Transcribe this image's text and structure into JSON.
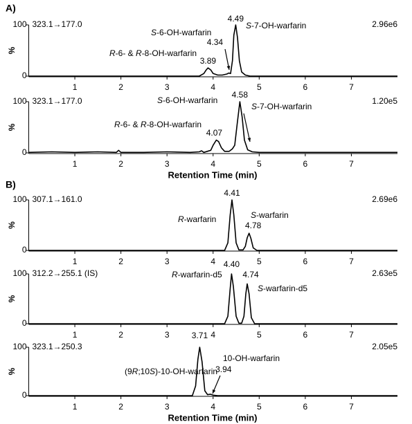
{
  "panel_labels": [
    "A)",
    "B)"
  ],
  "chart_data": [
    {
      "type": "line",
      "transition": "323.1→177.0",
      "intensity": "2.96e6",
      "ylabel": "%",
      "xlim": [
        0,
        8
      ],
      "xticks": [
        1,
        2,
        3,
        4,
        5,
        6,
        7
      ],
      "ylim": [
        0,
        100
      ],
      "yticks": [
        0,
        100
      ],
      "x": [
        0,
        3.7,
        3.8,
        3.85,
        3.89,
        3.95,
        4.0,
        4.1,
        4.2,
        4.3,
        4.34,
        4.38,
        4.42,
        4.45,
        4.49,
        4.53,
        4.57,
        4.62,
        4.7,
        4.8,
        8
      ],
      "values": [
        0,
        0,
        5,
        12,
        16,
        12,
        5,
        2,
        2,
        4,
        6,
        5,
        30,
        80,
        100,
        75,
        30,
        8,
        2,
        0,
        0
      ],
      "peaks": [
        4.49,
        4.34,
        3.89
      ],
      "annotations": [
        {
          "parts": [
            {
              "text": "S",
              "italic": true
            },
            {
              "text": "-6-OH-warfarin"
            }
          ]
        },
        {
          "parts": [
            {
              "text": "S",
              "italic": true
            },
            {
              "text": "-7-OH-warfarin"
            }
          ]
        },
        {
          "parts": [
            {
              "text": "R",
              "italic": true
            },
            {
              "text": "-6- & "
            },
            {
              "text": "R",
              "italic": true
            },
            {
              "text": "-8-OH-warfarin"
            }
          ]
        }
      ]
    },
    {
      "type": "line",
      "transition": "323.1→177.0",
      "intensity": "1.20e5",
      "ylabel": "%",
      "xlabel": "Retention Time (min)",
      "xlim": [
        0,
        8
      ],
      "xticks": [
        1,
        2,
        3,
        4,
        5,
        6,
        7
      ],
      "ylim": [
        0,
        100
      ],
      "yticks": [
        0,
        100
      ],
      "x": [
        0,
        0.5,
        1.0,
        1.5,
        1.9,
        1.95,
        2.0,
        2.5,
        3.0,
        3.5,
        3.7,
        3.75,
        3.8,
        3.95,
        4.0,
        4.07,
        4.12,
        4.18,
        4.25,
        4.35,
        4.42,
        4.47,
        4.52,
        4.58,
        4.63,
        4.68,
        4.75,
        4.85,
        5.0,
        6,
        7,
        8
      ],
      "values": [
        1,
        2,
        1,
        2,
        1,
        5,
        1,
        1,
        2,
        1,
        2,
        4,
        1,
        5,
        15,
        25,
        22,
        10,
        3,
        3,
        8,
        15,
        55,
        100,
        70,
        25,
        6,
        2,
        1,
        1,
        1,
        1
      ],
      "peaks": [
        4.58,
        4.07
      ],
      "annotations": [
        {
          "parts": [
            {
              "text": "S",
              "italic": true
            },
            {
              "text": "-6-OH-warfarin"
            }
          ]
        },
        {
          "parts": [
            {
              "text": "S",
              "italic": true
            },
            {
              "text": "-7-OH-warfarin"
            }
          ]
        },
        {
          "parts": [
            {
              "text": "R",
              "italic": true
            },
            {
              "text": "-6- & "
            },
            {
              "text": "R",
              "italic": true
            },
            {
              "text": "-8-OH-warfarin"
            }
          ]
        }
      ]
    },
    {
      "type": "line",
      "transition": "307.1→161.0",
      "intensity": "2.69e6",
      "ylabel": "%",
      "xlim": [
        0,
        8
      ],
      "xticks": [
        1,
        2,
        3,
        4,
        5,
        6,
        7
      ],
      "ylim": [
        0,
        100
      ],
      "yticks": [
        0,
        100
      ],
      "x": [
        0,
        4.25,
        4.32,
        4.37,
        4.41,
        4.45,
        4.5,
        4.56,
        4.65,
        4.7,
        4.74,
        4.78,
        4.82,
        4.87,
        4.95,
        8
      ],
      "values": [
        0,
        0,
        15,
        70,
        100,
        70,
        15,
        1,
        1,
        8,
        25,
        34,
        24,
        5,
        0,
        0
      ],
      "peaks": [
        4.41,
        4.78
      ],
      "annotations": [
        {
          "parts": [
            {
              "text": "R",
              "italic": true
            },
            {
              "text": "-warfarin"
            }
          ]
        },
        {
          "parts": [
            {
              "text": "S",
              "italic": true
            },
            {
              "text": "-warfarin"
            }
          ]
        }
      ]
    },
    {
      "type": "line",
      "transition": "312.2→255.1 (IS)",
      "intensity": "2.63e5",
      "ylabel": "%",
      "xlim": [
        0,
        8
      ],
      "xticks": [
        1,
        2,
        3,
        4,
        5,
        6,
        7
      ],
      "ylim": [
        0,
        100
      ],
      "yticks": [
        0,
        100
      ],
      "x": [
        0,
        4.25,
        4.32,
        4.37,
        4.4,
        4.44,
        4.5,
        4.56,
        4.62,
        4.67,
        4.71,
        4.74,
        4.78,
        4.83,
        4.9,
        8
      ],
      "values": [
        0,
        0,
        15,
        70,
        100,
        75,
        15,
        1,
        1,
        15,
        60,
        80,
        60,
        12,
        0,
        0
      ],
      "peaks": [
        {
          "value": 4.4,
          "label": "4.40"
        },
        4.74
      ],
      "annotations": [
        {
          "parts": [
            {
              "text": "R",
              "italic": true
            },
            {
              "text": "-warfarin-d5"
            }
          ]
        },
        {
          "parts": [
            {
              "text": "S",
              "italic": true
            },
            {
              "text": "-warfarin-d5"
            }
          ]
        }
      ]
    },
    {
      "type": "line",
      "transition": "323.1→250.3",
      "intensity": "2.05e5",
      "ylabel": "%",
      "xlabel": "Retention Time (min)",
      "xlim": [
        0,
        8
      ],
      "xticks": [
        1,
        2,
        3,
        4,
        5,
        6,
        7
      ],
      "ylim": [
        0,
        100
      ],
      "yticks": [
        0,
        100
      ],
      "x": [
        0,
        3.55,
        3.62,
        3.67,
        3.71,
        3.76,
        3.82,
        3.88,
        3.94,
        4.0,
        4.1,
        8
      ],
      "values": [
        0,
        0,
        20,
        75,
        100,
        70,
        10,
        2,
        3,
        1,
        0,
        0
      ],
      "peaks": [
        3.71,
        3.94
      ],
      "annotations": [
        {
          "parts": [
            {
              "text": "(9"
            },
            {
              "text": "R",
              "italic": true
            },
            {
              "text": ";10"
            },
            {
              "text": "S",
              "italic": true
            },
            {
              "text": ")-10-OH-warfarin"
            }
          ]
        },
        {
          "parts": [
            {
              "text": "10-OH-warfarin"
            }
          ]
        }
      ]
    }
  ]
}
